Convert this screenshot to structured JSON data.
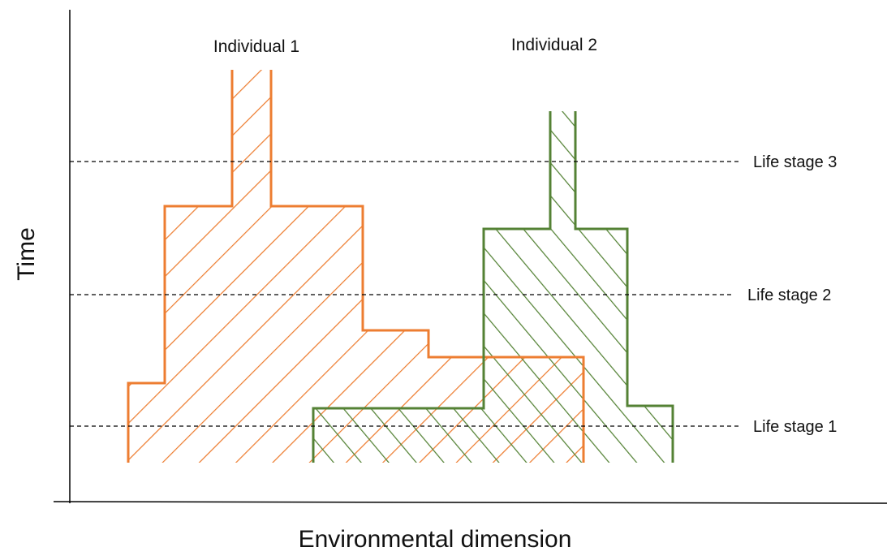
{
  "axes": {
    "y_title": "Time",
    "x_title": "Environmental dimension"
  },
  "individuals": [
    {
      "label": "Individual 1",
      "color": "#ED7D31",
      "hatch": "diagonal-up"
    },
    {
      "label": "Individual 2",
      "color": "#548235",
      "hatch": "diagonal-down"
    }
  ],
  "life_stages": [
    {
      "label": "Life stage 3"
    },
    {
      "label": "Life stage 2"
    },
    {
      "label": "Life stage 1"
    }
  ],
  "colors": {
    "axis": "#000000",
    "guide": "#000000"
  }
}
